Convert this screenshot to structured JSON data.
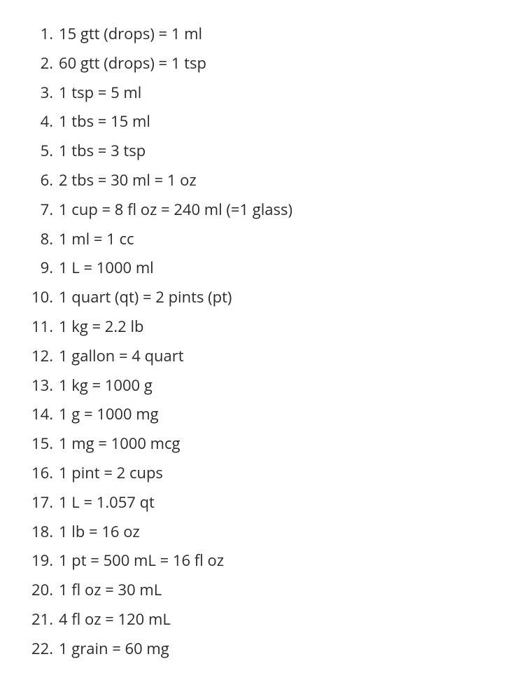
{
  "list": {
    "items": [
      "15 gtt (drops) = 1 ml",
      "60 gtt (drops) = 1 tsp",
      "1 tsp = 5 ml",
      "1 tbs = 15 ml",
      "1 tbs = 3 tsp",
      "2 tbs = 30 ml = 1 oz",
      "1 cup = 8 fl oz = 240 ml (=1 glass)",
      "1 ml = 1 cc",
      "1 L = 1000 ml",
      "1 quart (qt) = 2 pints (pt)",
      "1 kg = 2.2 lb",
      "1 gallon = 4 quart",
      "1 kg = 1000 g",
      "1 g = 1000 mg",
      "1 mg = 1000 mcg",
      "1 pint = 2 cups",
      "1 L = 1.057 qt",
      "1 lb = 16 oz",
      "1 pt = 500 mL = 16 fl oz",
      "1 fl oz = 30 mL",
      "4 fl oz = 120 mL",
      "1 grain = 60 mg"
    ]
  },
  "style": {
    "background_color": "#ffffff",
    "text_color": "#2b2b2b",
    "font_size": 22,
    "line_height": 1.9,
    "number_column_width": 56
  }
}
